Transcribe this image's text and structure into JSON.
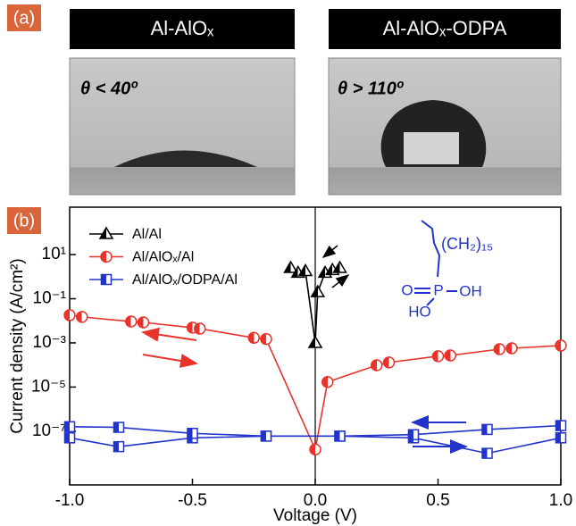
{
  "panel_labels": [
    "(a)",
    "(b)"
  ],
  "photos": [
    {
      "title": "Al-AlOₓ",
      "angle": "θ < 40º"
    },
    {
      "title": "Al-AlOₓ-ODPA",
      "angle": "θ > 110º"
    }
  ],
  "chart_data": {
    "type": "line",
    "x_label": "Voltage (V)",
    "y_label": "Current density (A/cm²)",
    "xlim": [
      -1,
      1
    ],
    "xticks": [
      {
        "value": -1,
        "label": "-1.0"
      },
      -0.5,
      {
        "value": 0,
        "label": "0.0"
      },
      0.5,
      {
        "value": 1,
        "label": "1.0"
      }
    ],
    "ylim": [
      3.7e-10,
      1400
    ],
    "log_y": true,
    "yticks": [
      {
        "value": 10,
        "label": "10¹"
      },
      {
        "value": 0.1,
        "label": "10⁻¹"
      },
      {
        "value": 0.001,
        "label": "10⁻³"
      },
      {
        "value": 1e-05,
        "label": "10⁻⁵"
      },
      {
        "value": 1e-07,
        "label": "10⁻⁷"
      }
    ],
    "legend": "upper left",
    "series": [
      {
        "name": "Al/Al",
        "color": "#000000",
        "marker": "triangle",
        "x": [
          -0.1,
          -0.07,
          -0.04,
          0,
          0.01,
          0.04,
          0.07,
          0.1
        ],
        "values": [
          2.5,
          1.5,
          1.8,
          0.001,
          0.2,
          1.5,
          2,
          2.5
        ]
      },
      {
        "name": "Al/AlOₓ/Al",
        "color": "#e8322a",
        "marker": "circle",
        "x": [
          -1,
          -0.95,
          -0.75,
          -0.7,
          -0.5,
          -0.47,
          -0.25,
          -0.2,
          0,
          0.05,
          0.25,
          0.3,
          0.5,
          0.55,
          0.75,
          0.8,
          1
        ],
        "values": [
          0.018,
          0.015,
          0.0093,
          0.0085,
          0.0049,
          0.0044,
          0.0017,
          0.0015,
          1.5e-08,
          1.7e-05,
          9.7e-05,
          0.00013,
          0.00025,
          0.00027,
          0.00052,
          0.00057,
          0.00076
        ]
      },
      {
        "name": "Al/AlOₓ/ODPA/Al",
        "color": "#2233cc",
        "marker": "square",
        "x": [
          -1,
          -0.8,
          -0.5,
          -0.2,
          0.1,
          0.4,
          0.7,
          1,
          1,
          0.7,
          0.4,
          0.1,
          -0.2,
          -0.5,
          -0.8,
          -1
        ],
        "values": [
          5e-08,
          2e-08,
          5e-08,
          6e-08,
          6e-08,
          5e-08,
          1e-08,
          5e-08,
          1.8e-07,
          1.2e-07,
          7e-08,
          6e-08,
          6e-08,
          8e-08,
          1.5e-07,
          1.6e-07
        ]
      }
    ],
    "annotations": [
      "(CH₂)₁₅",
      "O",
      "P",
      "OH",
      "HO"
    ]
  }
}
